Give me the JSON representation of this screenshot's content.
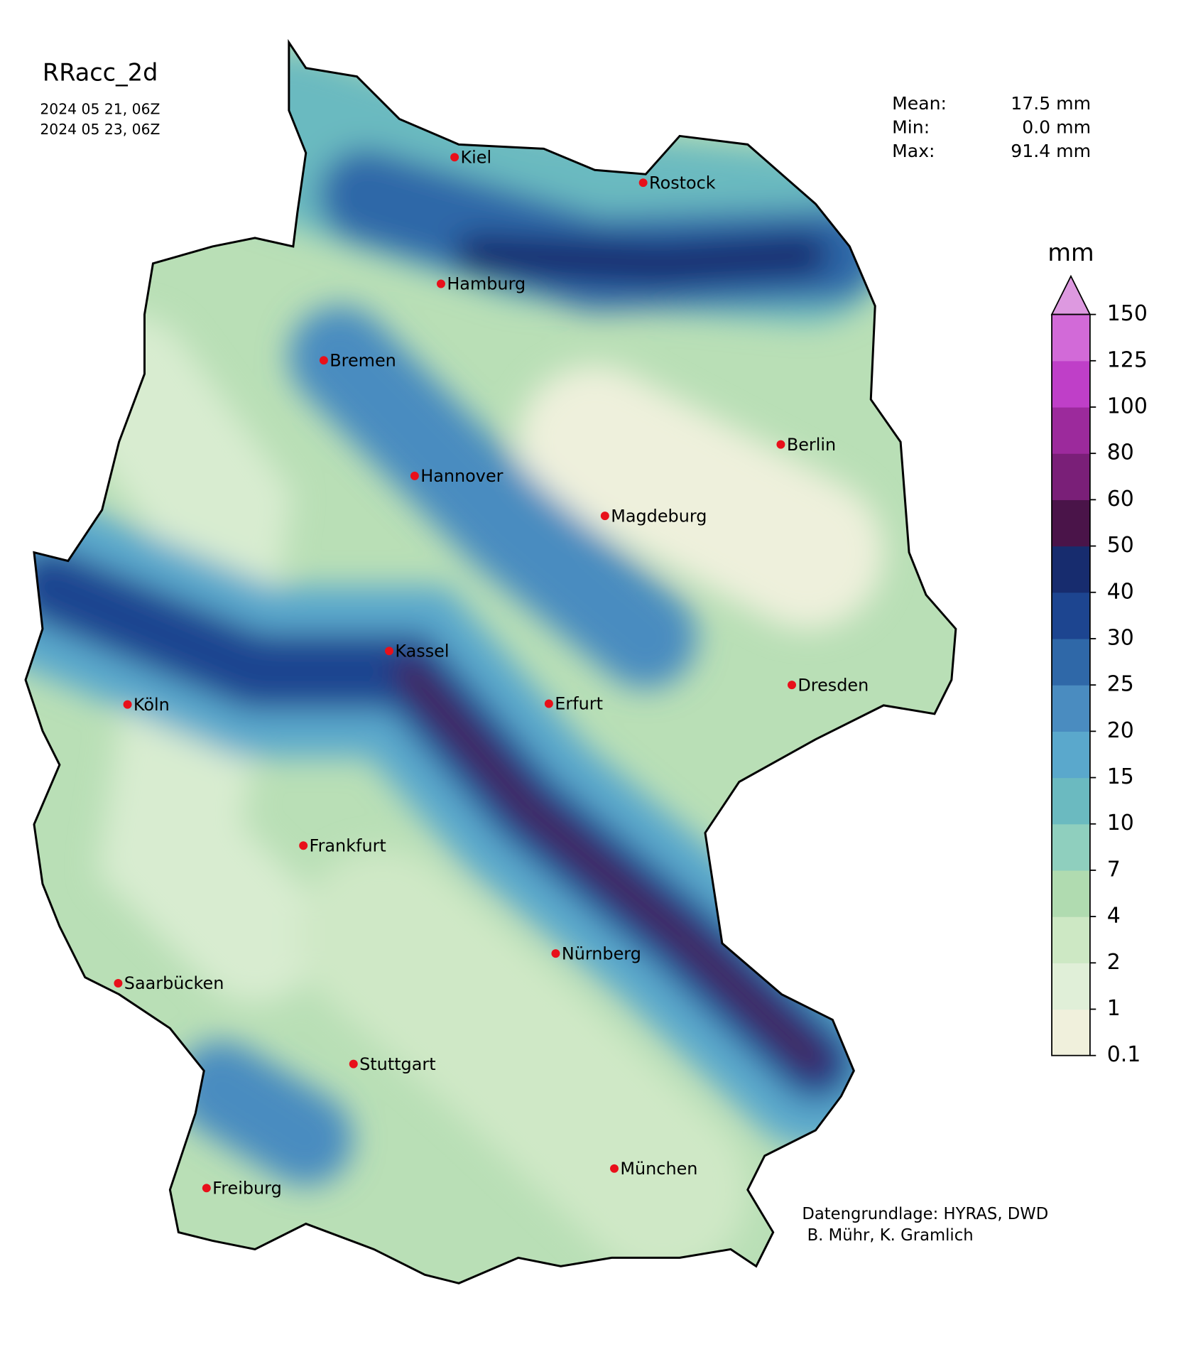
{
  "map": {
    "title": "RRacc_2d",
    "dates": [
      "2024 05 21, 06Z",
      "2024 05 23, 06Z"
    ],
    "stats": [
      {
        "label": "Mean:",
        "value": "17.5 mm"
      },
      {
        "label": "Min:",
        "value": "0.0 mm"
      },
      {
        "label": "Max:",
        "value": "91.4 mm"
      }
    ],
    "colorbar": {
      "unit": "mm",
      "ticks": [
        0.1,
        1,
        2,
        4,
        7,
        10,
        15,
        20,
        25,
        30,
        40,
        50,
        60,
        80,
        100,
        125,
        150
      ],
      "colors": [
        "#f0f0dc",
        "#e0efd8",
        "#cde8c4",
        "#b0dbb0",
        "#8fcfbe",
        "#6bbac0",
        "#5aa8cc",
        "#4a8cc0",
        "#2f68a8",
        "#1d4590",
        "#172c6e",
        "#4a1449",
        "#7a1f78",
        "#9c2a9c",
        "#bf3fc8",
        "#d26ad8"
      ],
      "extend_color": "#dd99e0"
    },
    "cities": [
      {
        "name": "Kiel"
      },
      {
        "name": "Rostock"
      },
      {
        "name": "Hamburg"
      },
      {
        "name": "Bremen"
      },
      {
        "name": "Berlin"
      },
      {
        "name": "Hannover"
      },
      {
        "name": "Magdeburg"
      },
      {
        "name": "Kassel"
      },
      {
        "name": "Köln"
      },
      {
        "name": "Erfurt"
      },
      {
        "name": "Dresden"
      },
      {
        "name": "Frankfurt"
      },
      {
        "name": "Nürnberg"
      },
      {
        "name": "Saarbücken"
      },
      {
        "name": "Stuttgart"
      },
      {
        "name": "München"
      },
      {
        "name": "Freiburg"
      }
    ],
    "credits": [
      "Datengrundlage: HYRAS, DWD",
      " B. Mühr, K. Gramlich"
    ]
  }
}
